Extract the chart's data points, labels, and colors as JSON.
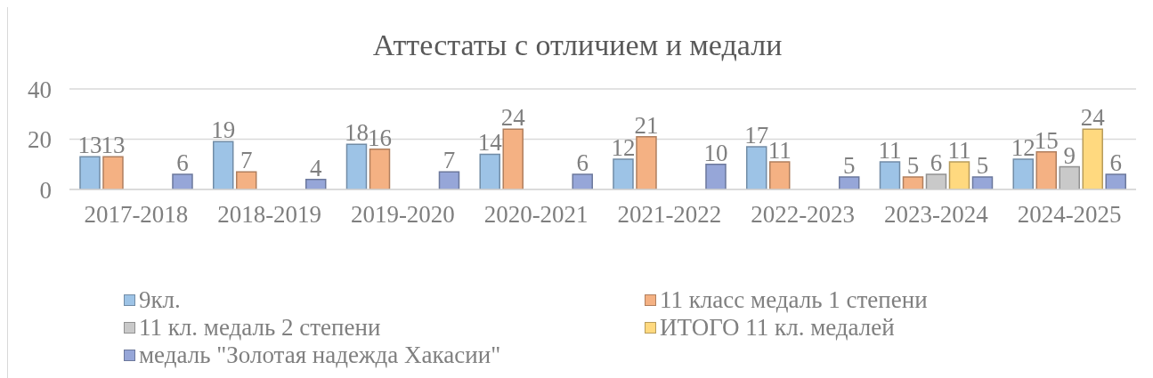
{
  "chart_data": {
    "type": "bar",
    "title": "Аттестаты с отличием и медали",
    "categories": [
      "2017-2018",
      "2018-2019",
      "2019-2020",
      "2020-2021",
      "2021-2022",
      "2022-2023",
      "2023-2024",
      "2024-2025"
    ],
    "series": [
      {
        "name": "9кл.",
        "color": "#9dc3e6",
        "values": [
          13,
          19,
          18,
          14,
          12,
          17,
          11,
          12
        ]
      },
      {
        "name": "11 класс медаль 1 степени",
        "color": "#f4b183",
        "values": [
          13,
          7,
          16,
          24,
          21,
          11,
          5,
          15
        ]
      },
      {
        "name": "11 кл. медаль 2 степени",
        "color": "#c9c9c9",
        "values": [
          null,
          null,
          null,
          null,
          null,
          null,
          6,
          9
        ]
      },
      {
        "name": "ИТОГО 11 кл. медалей",
        "color": "#ffd97f",
        "values": [
          null,
          null,
          null,
          null,
          null,
          null,
          11,
          24
        ]
      },
      {
        "name": "медаль \"Золотая надежда Хакасии\"",
        "color": "#96a6d8",
        "values": [
          6,
          4,
          7,
          6,
          10,
          5,
          5,
          6
        ]
      }
    ],
    "ylim": [
      0,
      40
    ],
    "yticks": [
      0,
      20,
      40
    ],
    "grid": "y",
    "legend": "bottom",
    "data_labels": true
  }
}
